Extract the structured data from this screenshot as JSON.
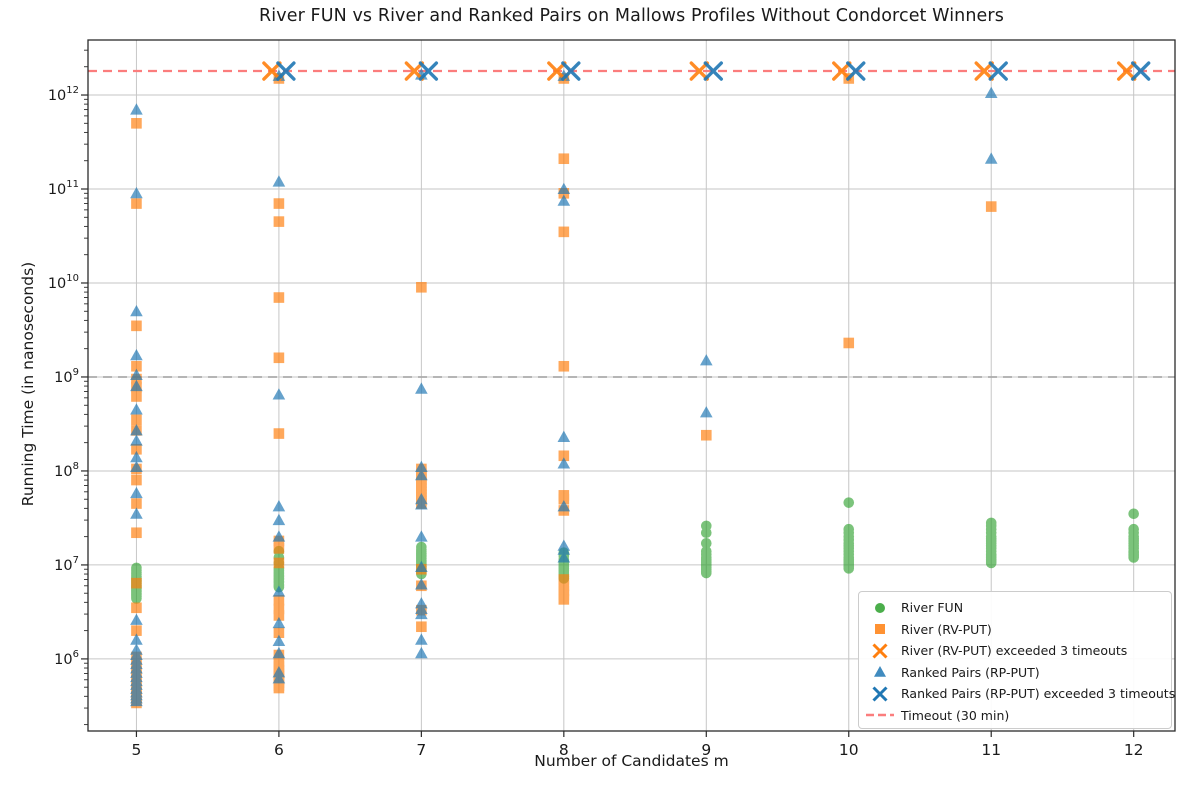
{
  "chart_data": {
    "type": "scatter",
    "title": "River FUN vs River and Ranked Pairs on Mallows Profiles Without Condorcet Winners",
    "xlabel": "Number of Candidates m",
    "ylabel": "Running Time (in nanoseconds)",
    "x_scale": "linear",
    "y_scale": "log",
    "x_ticks": [
      5,
      6,
      7,
      8,
      9,
      10,
      11,
      12
    ],
    "y_ticks_exp": [
      6,
      7,
      8,
      9,
      10,
      11,
      12
    ],
    "xlim": [
      4.66,
      12.29
    ],
    "ylim": [
      171000,
      3850000000000
    ],
    "grid": true,
    "legend_position": "lower right",
    "colors": {
      "river_fun": "#2ca02c",
      "river_rv": "#ff7f0e",
      "ranked_pairs": "#1f77b4",
      "timeout_line": "#fb7d7d",
      "second_line": "#ababab",
      "grid": "#c6c6c6",
      "spine": "#2b2b2b",
      "text": "#1a1a1a"
    },
    "reference_lines": [
      {
        "label": "Timeout (30 min)",
        "value": 1800000000000.0,
        "color_key": "timeout_line",
        "dash": true,
        "width": 2.2
      },
      {
        "label": "",
        "value": 1000000000.0,
        "color_key": "second_line",
        "dash": true,
        "width": 1.8
      }
    ],
    "series": [
      {
        "name": "River FUN",
        "marker": "circle",
        "color_key": "river_fun",
        "opacity": 0.62,
        "x_offset": 0,
        "points": {
          "5": [
            4400000.0,
            4600000.0,
            4800000.0,
            5000000.0,
            5200000.0,
            5400000.0,
            5600000.0,
            5800000.0,
            6000000.0,
            6300000.0,
            6600000.0,
            6900000.0,
            7200000.0,
            7500000.0,
            7900000.0,
            8300000.0,
            8800000.0,
            9300000.0
          ],
          "6": [
            5800000.0,
            6000000.0,
            6200000.0,
            6500000.0,
            6700000.0,
            7000000.0,
            7200000.0,
            7500000.0,
            7800000.0,
            8100000.0,
            8400000.0,
            8800000.0,
            9200000.0,
            10500000.0,
            12000000.0,
            14000000.0
          ],
          "7": [
            8000000.0,
            8400000.0,
            8800000.0,
            9200000.0,
            9600000.0,
            10000000.0,
            10400000.0,
            10800000.0,
            11200000.0,
            11700000.0,
            12200000.0,
            12700000.0,
            13200000.0,
            13800000.0,
            14500000.0,
            15500000.0
          ],
          "8": [
            7200000.0,
            7600000.0,
            8000000.0,
            8400000.0,
            8800000.0,
            9200000.0,
            9600000.0,
            10000000.0,
            10500000.0,
            11000000.0,
            11500000.0,
            12500000.0,
            13500000.0
          ],
          "9": [
            8200000.0,
            8600000.0,
            9000000.0,
            9400000.0,
            9800000.0,
            10200000.0,
            10600000.0,
            11000000.0,
            11500000.0,
            12000000.0,
            13000000.0,
            14000000.0,
            17000000.0,
            22000000.0,
            26000000.0
          ],
          "10": [
            9200000.0,
            9600000.0,
            10000000.0,
            10500000.0,
            11000000.0,
            11500000.0,
            12000000.0,
            13000000.0,
            14000000.0,
            15000000.0,
            16000000.0,
            17000000.0,
            18500000.0,
            20000000.0,
            22000000.0,
            24000000.0,
            46000000.0
          ],
          "11": [
            10500000.0,
            11000000.0,
            11500000.0,
            12000000.0,
            12500000.0,
            13000000.0,
            14000000.0,
            15000000.0,
            16000000.0,
            17000000.0,
            18000000.0,
            19000000.0,
            20000000.0,
            22000000.0,
            24000000.0,
            26000000.0,
            28000000.0
          ],
          "12": [
            12000000.0,
            12500000.0,
            13000000.0,
            13500000.0,
            14000000.0,
            15000000.0,
            16000000.0,
            17000000.0,
            18000000.0,
            19000000.0,
            20000000.0,
            22000000.0,
            24000000.0,
            35000000.0
          ]
        }
      },
      {
        "name": "River (RV-PUT)",
        "marker": "square",
        "color_key": "river_rv",
        "opacity": 0.68,
        "x_offset": 0,
        "points": {
          "5": [
            500000000000.0,
            70000000000.0,
            3500000000.0,
            1300000000.0,
            950000000.0,
            780000000.0,
            620000000.0,
            350000000.0,
            270000000.0,
            170000000.0,
            105000000.0,
            80000000.0,
            45000000.0,
            22000000.0,
            6400000.0,
            3500000.0,
            2000000.0,
            1050000.0,
            920000.0,
            820000.0,
            740000.0,
            670000.0,
            610000.0,
            560000.0,
            510000.0,
            470000.0,
            435000.0,
            405000.0,
            380000.0,
            360000.0,
            340000.0
          ],
          "6": [
            1500000000000.0,
            70000000000.0,
            45000000000.0,
            7000000000.0,
            1600000000.0,
            250000000.0,
            18000000.0,
            15000000.0,
            10500000.0,
            4200000.0,
            3400000.0,
            2900000.0,
            1900000.0,
            1100000.0,
            920000.0,
            830000.0,
            760000.0,
            700000.0,
            650000.0,
            600000.0,
            560000.0,
            520000.0,
            490000.0
          ],
          "7": [
            9000000000.0,
            105000000.0,
            95000000.0,
            88000000.0,
            81000000.0,
            75000000.0,
            70000000.0,
            65000000.0,
            60000000.0,
            56000000.0,
            52000000.0,
            48000000.0,
            45000000.0,
            9000000.0,
            6000000.0,
            3300000.0,
            2200000.0
          ],
          "8": [
            1500000000000.0,
            210000000000.0,
            90000000000.0,
            35000000000.0,
            1300000000.0,
            145000000.0,
            55000000.0,
            50000000.0,
            38000000.0,
            7000000.0,
            6000000.0,
            5300000.0,
            4800000.0,
            4300000.0
          ],
          "9": [
            240000000.0
          ],
          "10": [
            1500000000000.0,
            2300000000.0
          ],
          "11": [
            65000000000.0
          ],
          "12": []
        }
      },
      {
        "name": "Ranked Pairs (RP-PUT)",
        "marker": "triangle",
        "color_key": "ranked_pairs",
        "opacity": 0.68,
        "x_offset": 0,
        "points": {
          "5": [
            700000000000.0,
            90000000000.0,
            5000000000.0,
            1700000000.0,
            1050000000.0,
            800000000.0,
            450000000.0,
            270000000.0,
            210000000.0,
            140000000.0,
            110000000.0,
            58000000.0,
            35000000.0,
            2600000.0,
            1600000.0,
            1250000.0,
            1100000.0,
            980000.0,
            880000.0,
            790000.0,
            710000.0,
            640000.0,
            580000.0,
            530000.0,
            480000.0,
            440000.0,
            410000.0,
            380000.0,
            355000.0
          ],
          "6": [
            1600000000000.0,
            120000000000.0,
            650000000.0,
            42000000.0,
            30000000.0,
            20000000.0,
            5200000.0,
            2400000.0,
            1550000.0,
            1150000.0,
            720000.0,
            620000.0
          ],
          "7": [
            1650000000000.0,
            750000000.0,
            110000000.0,
            90000000.0,
            50000000.0,
            44000000.0,
            20000000.0,
            9500000.0,
            6200000.0,
            3900000.0,
            3400000.0,
            3000000.0,
            1600000.0,
            1150000.0
          ],
          "8": [
            1600000000000.0,
            100000000000.0,
            75000000000.0,
            230000000.0,
            120000000.0,
            42000000.0,
            16000000.0,
            14500000.0,
            12000000.0
          ],
          "9": [
            1500000000.0,
            420000000.0
          ],
          "10": [],
          "11": [
            1050000000000.0,
            210000000000.0
          ],
          "12": []
        }
      },
      {
        "name": "River (RV-PUT) exceeded 3 timeouts",
        "marker": "x",
        "color_key": "river_rv",
        "opacity": 0.9,
        "x_offset": -7,
        "points": {
          "5": [],
          "6": [
            1800000000000.0
          ],
          "7": [
            1800000000000.0
          ],
          "8": [
            1800000000000.0
          ],
          "9": [
            1800000000000.0
          ],
          "10": [
            1800000000000.0
          ],
          "11": [
            1800000000000.0
          ],
          "12": [
            1800000000000.0
          ]
        }
      },
      {
        "name": "Ranked Pairs (RP-PUT) exceeded 3 timeouts",
        "marker": "x",
        "color_key": "ranked_pairs",
        "opacity": 0.9,
        "x_offset": 7,
        "points": {
          "5": [],
          "6": [
            1800000000000.0
          ],
          "7": [
            1800000000000.0
          ],
          "8": [
            1800000000000.0
          ],
          "9": [
            1800000000000.0
          ],
          "10": [
            1800000000000.0
          ],
          "11": [
            1800000000000.0
          ],
          "12": [
            1800000000000.0
          ]
        }
      }
    ],
    "legend": [
      {
        "marker": "circle",
        "color_key": "river_fun",
        "label": "River FUN"
      },
      {
        "marker": "square",
        "color_key": "river_rv",
        "label": "River (RV-PUT)"
      },
      {
        "marker": "x",
        "color_key": "river_rv",
        "label": "River (RV-PUT) exceeded 3 timeouts"
      },
      {
        "marker": "triangle",
        "color_key": "ranked_pairs",
        "label": "Ranked Pairs (RP-PUT)"
      },
      {
        "marker": "x",
        "color_key": "ranked_pairs",
        "label": "Ranked Pairs (RP-PUT) exceeded 3 timeouts"
      },
      {
        "marker": "dashed-line",
        "color_key": "timeout_line",
        "label": "Timeout (30 min)"
      }
    ]
  }
}
